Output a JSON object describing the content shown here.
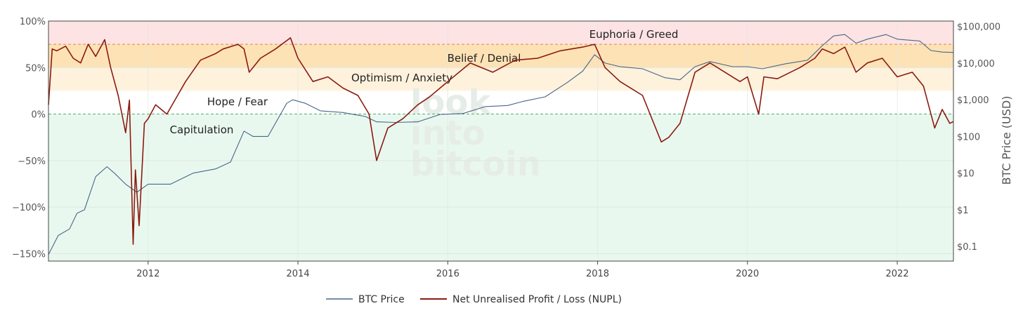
{
  "chart_data": {
    "type": "line",
    "watermark": [
      "look",
      "into",
      "bitcoin"
    ],
    "x_ticks": [
      "2012",
      "2014",
      "2016",
      "2018",
      "2020",
      "2022"
    ],
    "x_range": [
      2010.67,
      2022.75
    ],
    "y_left": {
      "ticks": [
        "100%",
        "50%",
        "0%",
        "−50%",
        "−100%",
        "−150%"
      ],
      "tick_values": [
        100,
        50,
        0,
        -50,
        -100,
        -150
      ],
      "range": [
        -158,
        100
      ]
    },
    "y_right": {
      "title": "BTC Price (USD)",
      "scale": "log",
      "ticks": [
        "$100,000",
        "$10,000",
        "$1,000",
        "$100",
        "$10",
        "$1",
        "$0.1"
      ],
      "tick_values": [
        100000,
        10000,
        1000,
        100,
        10,
        1,
        0.1
      ],
      "range": [
        0.04,
        140000
      ]
    },
    "zones": [
      {
        "label": "Euphoria / Greed",
        "from": 75,
        "to": 100,
        "color": "#fde3e3"
      },
      {
        "label": "Belief / Denial",
        "from": 50,
        "to": 75,
        "color": "#fde2b6"
      },
      {
        "label": "Optimism / Anxiety",
        "from": 25,
        "to": 50,
        "color": "#fef2dd"
      },
      {
        "label": "Hope / Fear",
        "from": 0,
        "to": 25,
        "color": "#ffffff"
      },
      {
        "label": "Capitulation",
        "from": -158,
        "to": 0,
        "color": "#e9f8ef"
      }
    ],
    "series": [
      {
        "name": "BTC Price",
        "axis": "right",
        "color": "#4a6688",
        "x": [
          2010.67,
          2010.8,
          2010.95,
          2011.05,
          2011.15,
          2011.3,
          2011.45,
          2011.55,
          2011.7,
          2011.85,
          2012.0,
          2012.3,
          2012.6,
          2012.9,
          2013.1,
          2013.28,
          2013.4,
          2013.6,
          2013.85,
          2013.93,
          2014.1,
          2014.3,
          2014.6,
          2014.9,
          2015.05,
          2015.3,
          2015.6,
          2015.9,
          2016.2,
          2016.5,
          2016.8,
          2017.0,
          2017.3,
          2017.6,
          2017.8,
          2017.96,
          2018.1,
          2018.3,
          2018.6,
          2018.9,
          2019.1,
          2019.3,
          2019.5,
          2019.8,
          2020.0,
          2020.2,
          2020.5,
          2020.8,
          2021.0,
          2021.15,
          2021.3,
          2021.45,
          2021.6,
          2021.85,
          2022.0,
          2022.3,
          2022.45,
          2022.6,
          2022.75
        ],
        "values": [
          0.06,
          0.2,
          0.3,
          0.8,
          1.0,
          8,
          15,
          10,
          5,
          3,
          5,
          5,
          10,
          13,
          20,
          140,
          100,
          100,
          800,
          1000,
          800,
          500,
          450,
          350,
          250,
          240,
          250,
          400,
          420,
          650,
          700,
          900,
          1200,
          3000,
          6000,
          17000,
          10000,
          8000,
          7000,
          4000,
          3500,
          8000,
          11000,
          8000,
          8000,
          7000,
          9500,
          12000,
          30000,
          55000,
          60000,
          35000,
          45000,
          60000,
          45000,
          40000,
          22000,
          20000,
          19500
        ]
      },
      {
        "name": "Net Unrealised Profit / Loss (NUPL)",
        "axis": "left",
        "color": "#8b1a10",
        "x": [
          2010.67,
          2010.72,
          2010.78,
          2010.9,
          2011.0,
          2011.1,
          2011.2,
          2011.3,
          2011.42,
          2011.5,
          2011.6,
          2011.7,
          2011.75,
          2011.8,
          2011.83,
          2011.88,
          2011.95,
          2012.0,
          2012.1,
          2012.25,
          2012.5,
          2012.7,
          2012.9,
          2013.0,
          2013.2,
          2013.28,
          2013.35,
          2013.5,
          2013.7,
          2013.9,
          2014.0,
          2014.2,
          2014.4,
          2014.6,
          2014.8,
          2014.95,
          2015.05,
          2015.2,
          2015.4,
          2015.6,
          2015.75,
          2016.0,
          2016.3,
          2016.6,
          2016.9,
          2017.2,
          2017.5,
          2017.8,
          2017.96,
          2018.1,
          2018.3,
          2018.6,
          2018.85,
          2018.95,
          2019.1,
          2019.3,
          2019.5,
          2019.7,
          2019.9,
          2020.0,
          2020.15,
          2020.22,
          2020.4,
          2020.7,
          2020.9,
          2021.0,
          2021.15,
          2021.3,
          2021.45,
          2021.6,
          2021.8,
          2022.0,
          2022.2,
          2022.35,
          2022.45,
          2022.5,
          2022.6,
          2022.7,
          2022.75
        ],
        "values": [
          10,
          70,
          68,
          73,
          60,
          55,
          75,
          62,
          80,
          50,
          20,
          -20,
          15,
          -140,
          -60,
          -120,
          -10,
          -5,
          10,
          0,
          35,
          58,
          65,
          70,
          75,
          70,
          45,
          60,
          70,
          82,
          60,
          35,
          40,
          28,
          20,
          0,
          -50,
          -15,
          -5,
          10,
          18,
          35,
          55,
          45,
          58,
          60,
          68,
          72,
          75,
          50,
          35,
          20,
          -30,
          -25,
          -10,
          45,
          55,
          45,
          35,
          40,
          0,
          40,
          38,
          50,
          60,
          70,
          65,
          72,
          45,
          55,
          60,
          40,
          45,
          30,
          0,
          -15,
          5,
          -10,
          -8
        ]
      }
    ],
    "legend": {
      "placement": "bottom-center",
      "items": [
        "BTC Price",
        "Net Unrealised Profit / Loss (NUPL)"
      ]
    }
  }
}
